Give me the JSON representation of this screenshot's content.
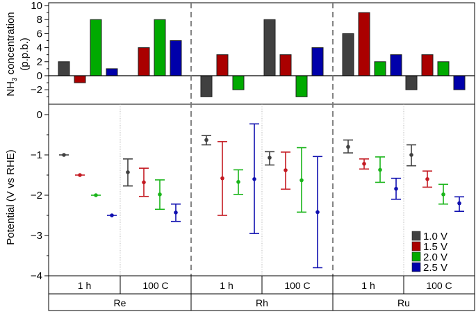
{
  "chart_data": [
    {
      "type": "bar",
      "ylabel_main": "NH",
      "ylabel_sub": "3",
      "ylabel_rest": " concentration",
      "ylabel_unit": "(p.p.b.)",
      "ylim": [
        -3.9,
        10
      ],
      "yticks": [
        -2,
        0,
        2,
        4,
        6,
        8,
        10
      ],
      "categories": [
        "Re 1 h",
        "Re 100 C",
        "Rh 1 h",
        "Rh 100 C",
        "Ru 1 h",
        "Ru 100 C"
      ],
      "series": [
        {
          "name": "1.0 V",
          "values": [
            2,
            0,
            -3,
            8,
            6,
            -2
          ]
        },
        {
          "name": "1.5 V",
          "values": [
            -1,
            4,
            3,
            3,
            9,
            3
          ]
        },
        {
          "name": "2.0 V",
          "values": [
            8,
            8,
            -2,
            -3,
            2,
            2
          ]
        },
        {
          "name": "2.5 V",
          "values": [
            1,
            5,
            0,
            4,
            3,
            -2
          ]
        }
      ]
    },
    {
      "type": "scatter",
      "ylabel": "Potential (V vs RHE)",
      "ylim": [
        -4,
        0.2
      ],
      "yticks": [
        0,
        -1,
        -2,
        -3,
        -4
      ],
      "categories": [
        "Re 1 h",
        "Re 100 C",
        "Rh 1 h",
        "Rh 100 C",
        "Ru 1 h",
        "Ru 100 C"
      ],
      "series": [
        {
          "name": "1.0 V",
          "points": [
            {
              "y": -1.0,
              "lo": -1.0,
              "hi": -1.0
            },
            {
              "y": -1.43,
              "lo": -1.77,
              "hi": -1.1
            },
            {
              "y": -0.63,
              "lo": -0.75,
              "hi": -0.52
            },
            {
              "y": -1.07,
              "lo": -1.25,
              "hi": -0.92
            },
            {
              "y": -0.8,
              "lo": -0.95,
              "hi": -0.63
            },
            {
              "y": -1.0,
              "lo": -1.27,
              "hi": -0.75
            }
          ]
        },
        {
          "name": "1.5 V",
          "points": [
            {
              "y": -1.5,
              "lo": -1.5,
              "hi": -1.5
            },
            {
              "y": -1.68,
              "lo": -2.03,
              "hi": -1.33
            },
            {
              "y": -1.58,
              "lo": -2.5,
              "hi": -0.67
            },
            {
              "y": -1.38,
              "lo": -1.85,
              "hi": -0.93
            },
            {
              "y": -1.22,
              "lo": -1.35,
              "hi": -1.1
            },
            {
              "y": -1.6,
              "lo": -1.8,
              "hi": -1.4
            }
          ]
        },
        {
          "name": "2.0 V",
          "points": [
            {
              "y": -2.0,
              "lo": -2.0,
              "hi": -2.0
            },
            {
              "y": -1.98,
              "lo": -2.35,
              "hi": -1.62
            },
            {
              "y": -1.67,
              "lo": -1.98,
              "hi": -1.37
            },
            {
              "y": -1.63,
              "lo": -2.42,
              "hi": -0.82
            },
            {
              "y": -1.37,
              "lo": -1.68,
              "hi": -1.05
            },
            {
              "y": -1.98,
              "lo": -2.22,
              "hi": -1.73
            }
          ]
        },
        {
          "name": "2.5 V",
          "points": [
            {
              "y": -2.5,
              "lo": -2.5,
              "hi": -2.5
            },
            {
              "y": -2.43,
              "lo": -2.65,
              "hi": -2.22
            },
            {
              "y": -1.6,
              "lo": -2.95,
              "hi": -0.23
            },
            {
              "y": -2.42,
              "lo": -3.8,
              "hi": -1.04
            },
            {
              "y": -1.84,
              "lo": -2.1,
              "hi": -1.58
            },
            {
              "y": -2.2,
              "lo": -2.4,
              "hi": -2.04
            }
          ]
        }
      ],
      "legend_position": "bottom-right"
    }
  ],
  "axis_groups": {
    "conditions": [
      "1 h",
      "100 C",
      "1 h",
      "100 C",
      "1 h",
      "100 C"
    ],
    "metals": [
      "Re",
      "Rh",
      "Ru"
    ]
  },
  "legend": [
    "1.0 V",
    "1.5 V",
    "2.0 V",
    "2.5 V"
  ],
  "colors": {
    "bars": [
      "#404040",
      "#aa0000",
      "#00aa00",
      "#0000aa"
    ],
    "errorbars": [
      "#404040",
      "#c41a22",
      "#1ab51a",
      "#1010b0"
    ]
  }
}
